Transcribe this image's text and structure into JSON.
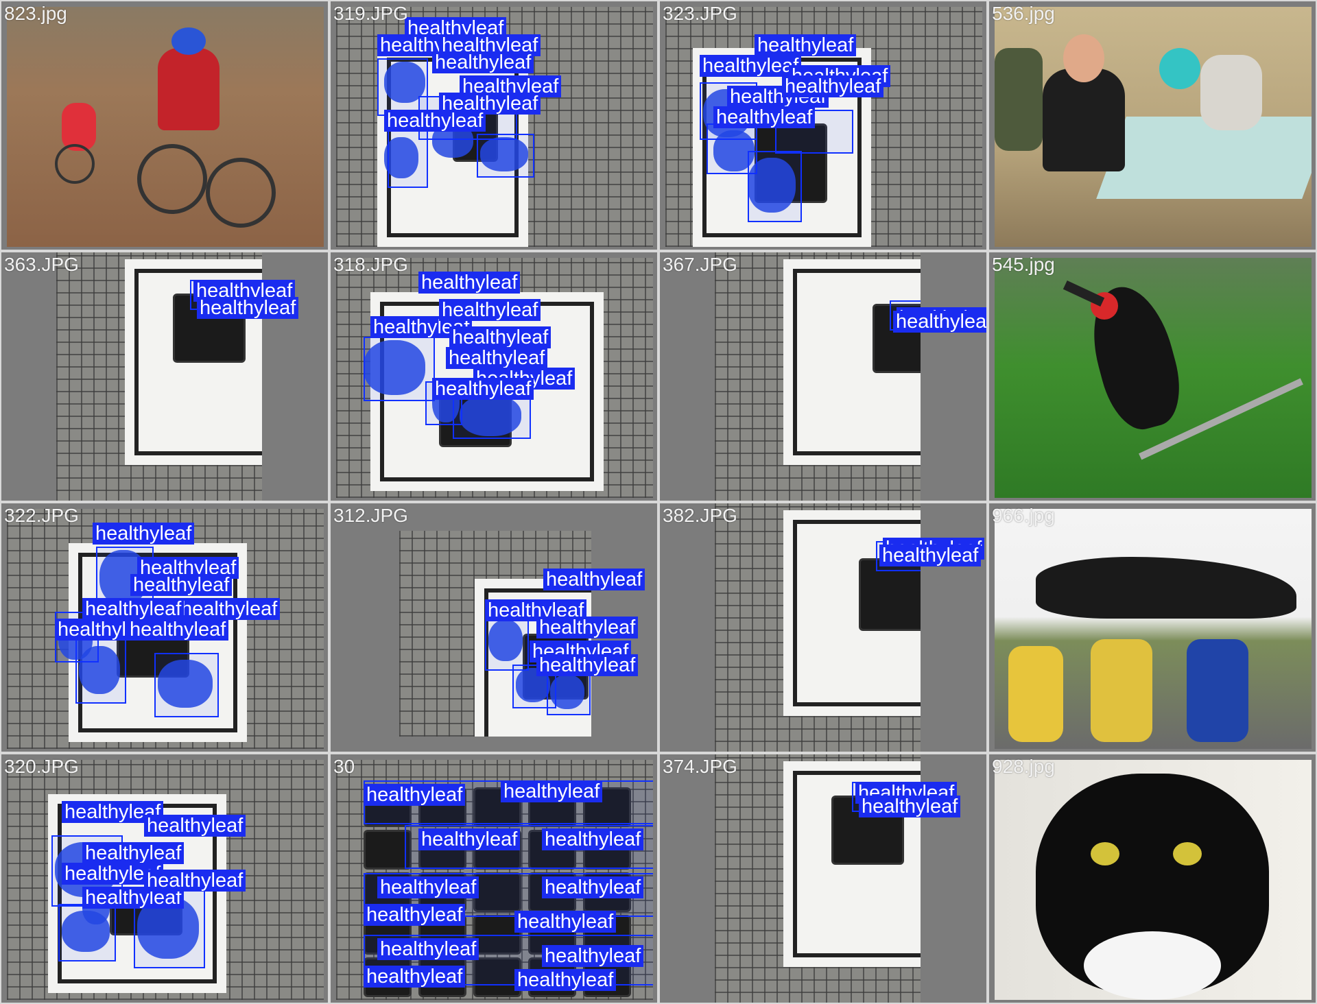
{
  "tiles": [
    {
      "filename": "823.jpg",
      "kind": "photo",
      "scene": "forest-bikers",
      "labels": []
    },
    {
      "filename": "319.JPG",
      "kind": "plant",
      "labels": [
        "healthyleaf",
        "healthyleaf",
        "healthyleaf",
        "healthyleaf",
        "healthyleaf",
        "healthyleaf",
        "healthyleaf"
      ]
    },
    {
      "filename": "323.JPG",
      "kind": "plant",
      "labels": [
        "healthyleaf",
        "healthyleaf",
        "healthyleaf",
        "healthyleaf",
        "healthyleaf",
        "healthyleaf"
      ]
    },
    {
      "filename": "536.jpg",
      "kind": "photo",
      "scene": "dinner-table",
      "labels": []
    },
    {
      "filename": "363.JPG",
      "kind": "plant",
      "labels": [
        "healthyleaf",
        "healthyleaf"
      ]
    },
    {
      "filename": "318.JPG",
      "kind": "plant",
      "labels": [
        "healthyleaf",
        "healthyleaf",
        "healthyleaf",
        "healthyleaf",
        "healthyleaf",
        "healthyleaf",
        "healthyleaf"
      ]
    },
    {
      "filename": "367.JPG",
      "kind": "plant",
      "labels": [
        "healthyleaf",
        "healthyleaf"
      ]
    },
    {
      "filename": "545.jpg",
      "kind": "photo",
      "scene": "hornbill",
      "labels": []
    },
    {
      "filename": "322.JPG",
      "kind": "plant",
      "labels": [
        "healthyleaf",
        "healthyleaf",
        "healthyleaf",
        "healthyleaf",
        "healthyleaf",
        "healthyleaf",
        "healthyleaf"
      ]
    },
    {
      "filename": "312.JPG",
      "kind": "plant",
      "labels": [
        "healthyleaf",
        "healthyleaf",
        "healthyleaf",
        "healthyleaf",
        "healthyleaf"
      ]
    },
    {
      "filename": "382.JPG",
      "kind": "plant",
      "labels": [
        "healthyleaf",
        "healthyleaf"
      ]
    },
    {
      "filename": "966.jpg",
      "kind": "photo",
      "scene": "jet-crew",
      "labels": []
    },
    {
      "filename": "320.JPG",
      "kind": "plant",
      "labels": [
        "healthyleaf",
        "healthyleaf",
        "healthyleaf",
        "healthyleaf",
        "healthyleaf",
        "healthyleaf"
      ]
    },
    {
      "filename": "30",
      "kind": "tray",
      "labels": [
        "healthyleaf",
        "healthyleaf",
        "healthyleaf",
        "healthyleaf",
        "healthyleaf",
        "healthyleaf",
        "healthyleaf",
        "healthyleaf",
        "healthyleaf",
        "healthyleaf",
        "healthyleaf",
        "healthyleaf"
      ]
    },
    {
      "filename": "374.JPG",
      "kind": "plant",
      "labels": [
        "healthyleaf",
        "healthyleaf"
      ]
    },
    {
      "filename": "928.jpg",
      "kind": "photo",
      "scene": "black-white-cat",
      "labels": []
    }
  ],
  "colors": {
    "box": "#1030ff",
    "label_bg": "#1a2cf0",
    "mask": "#2548e0",
    "background": "#7f7f7f"
  }
}
